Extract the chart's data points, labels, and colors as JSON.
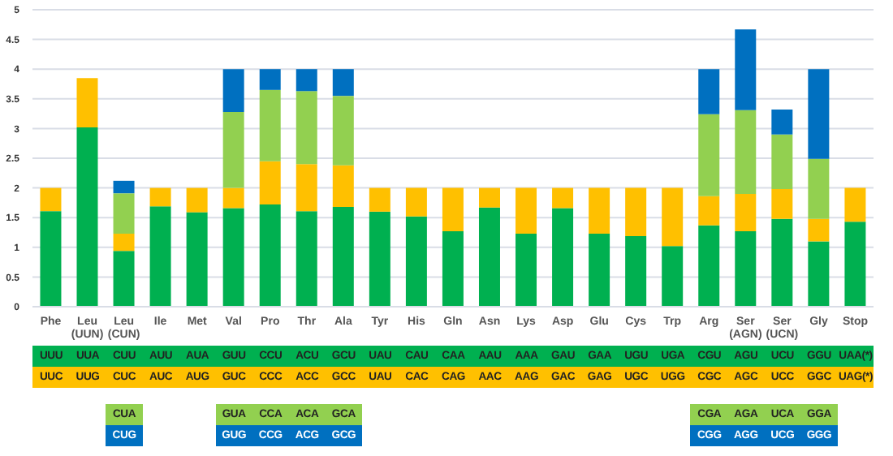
{
  "chart_data": {
    "type": "bar",
    "stacked": true,
    "categories": [
      "Phe",
      "Leu (UUN)",
      "Leu (CUN)",
      "Ile",
      "Met",
      "Val",
      "Pro",
      "Thr",
      "Ala",
      "Tyr",
      "His",
      "Gln",
      "Asn",
      "Lys",
      "Asp",
      "Glu",
      "Cys",
      "Trp",
      "Arg",
      "Ser (AGN)",
      "Ser (UCN)",
      "Gly",
      "Stop"
    ],
    "series": [
      {
        "color": "#00b050",
        "values": [
          1.61,
          3.02,
          0.94,
          1.69,
          1.59,
          1.66,
          1.72,
          1.61,
          1.68,
          1.6,
          1.52,
          1.27,
          1.67,
          1.23,
          1.66,
          1.23,
          1.19,
          1.02,
          1.37,
          1.27,
          1.48,
          1.1,
          1.43
        ]
      },
      {
        "color": "#ffc000",
        "values": [
          0.39,
          0.83,
          0.29,
          0.31,
          0.41,
          0.34,
          0.73,
          0.79,
          0.7,
          0.4,
          0.48,
          0.73,
          0.33,
          0.77,
          0.34,
          0.77,
          0.81,
          0.98,
          0.49,
          0.63,
          0.5,
          0.38,
          0.57
        ]
      },
      {
        "color": "#92d050",
        "values": [
          null,
          null,
          0.68,
          null,
          null,
          1.28,
          1.2,
          1.23,
          1.17,
          null,
          null,
          null,
          null,
          null,
          null,
          null,
          null,
          null,
          1.38,
          1.41,
          0.92,
          1.01,
          null
        ]
      },
      {
        "color": "#0070c0",
        "values": [
          null,
          null,
          0.21,
          null,
          null,
          0.72,
          0.35,
          0.37,
          0.45,
          null,
          null,
          null,
          null,
          null,
          null,
          null,
          null,
          null,
          0.76,
          1.36,
          0.42,
          1.51,
          null
        ]
      }
    ],
    "ylim": [
      0,
      5
    ],
    "yticks": [
      0,
      0.5,
      1,
      1.5,
      2,
      2.5,
      3,
      3.5,
      4,
      4.5,
      5
    ],
    "grid": "y",
    "annotations": [
      "UUU",
      "UUA",
      "CUU",
      "AUU",
      "AUA",
      "GUU",
      "CCU",
      "ACU",
      "GCU",
      "UAU",
      "CAU",
      "CAA",
      "AAU",
      "AAA",
      "GAU",
      "GAA",
      "UGU",
      "UGA",
      "CGU",
      "AGU",
      "UCU",
      "GGU",
      "UAA(*)",
      "UUC",
      "UUG",
      "CUC",
      "AUC",
      "AUG",
      "GUC",
      "CCC",
      "ACC",
      "GCC",
      "UAU",
      "CAC",
      "CAG",
      "AAC",
      "AAG",
      "GAC",
      "GAG",
      "UGC",
      "UGG",
      "CGC",
      "AGC",
      "UCC",
      "GGC",
      "UAG(*)",
      "CUA",
      "GUA",
      "CCA",
      "ACA",
      "GCA",
      "CGA",
      "AGA",
      "UCA",
      "GGA",
      "CUG",
      "GUG",
      "CCG",
      "ACG",
      "GCG",
      "CGG",
      "AGG",
      "UCG",
      "GGG"
    ]
  }
}
